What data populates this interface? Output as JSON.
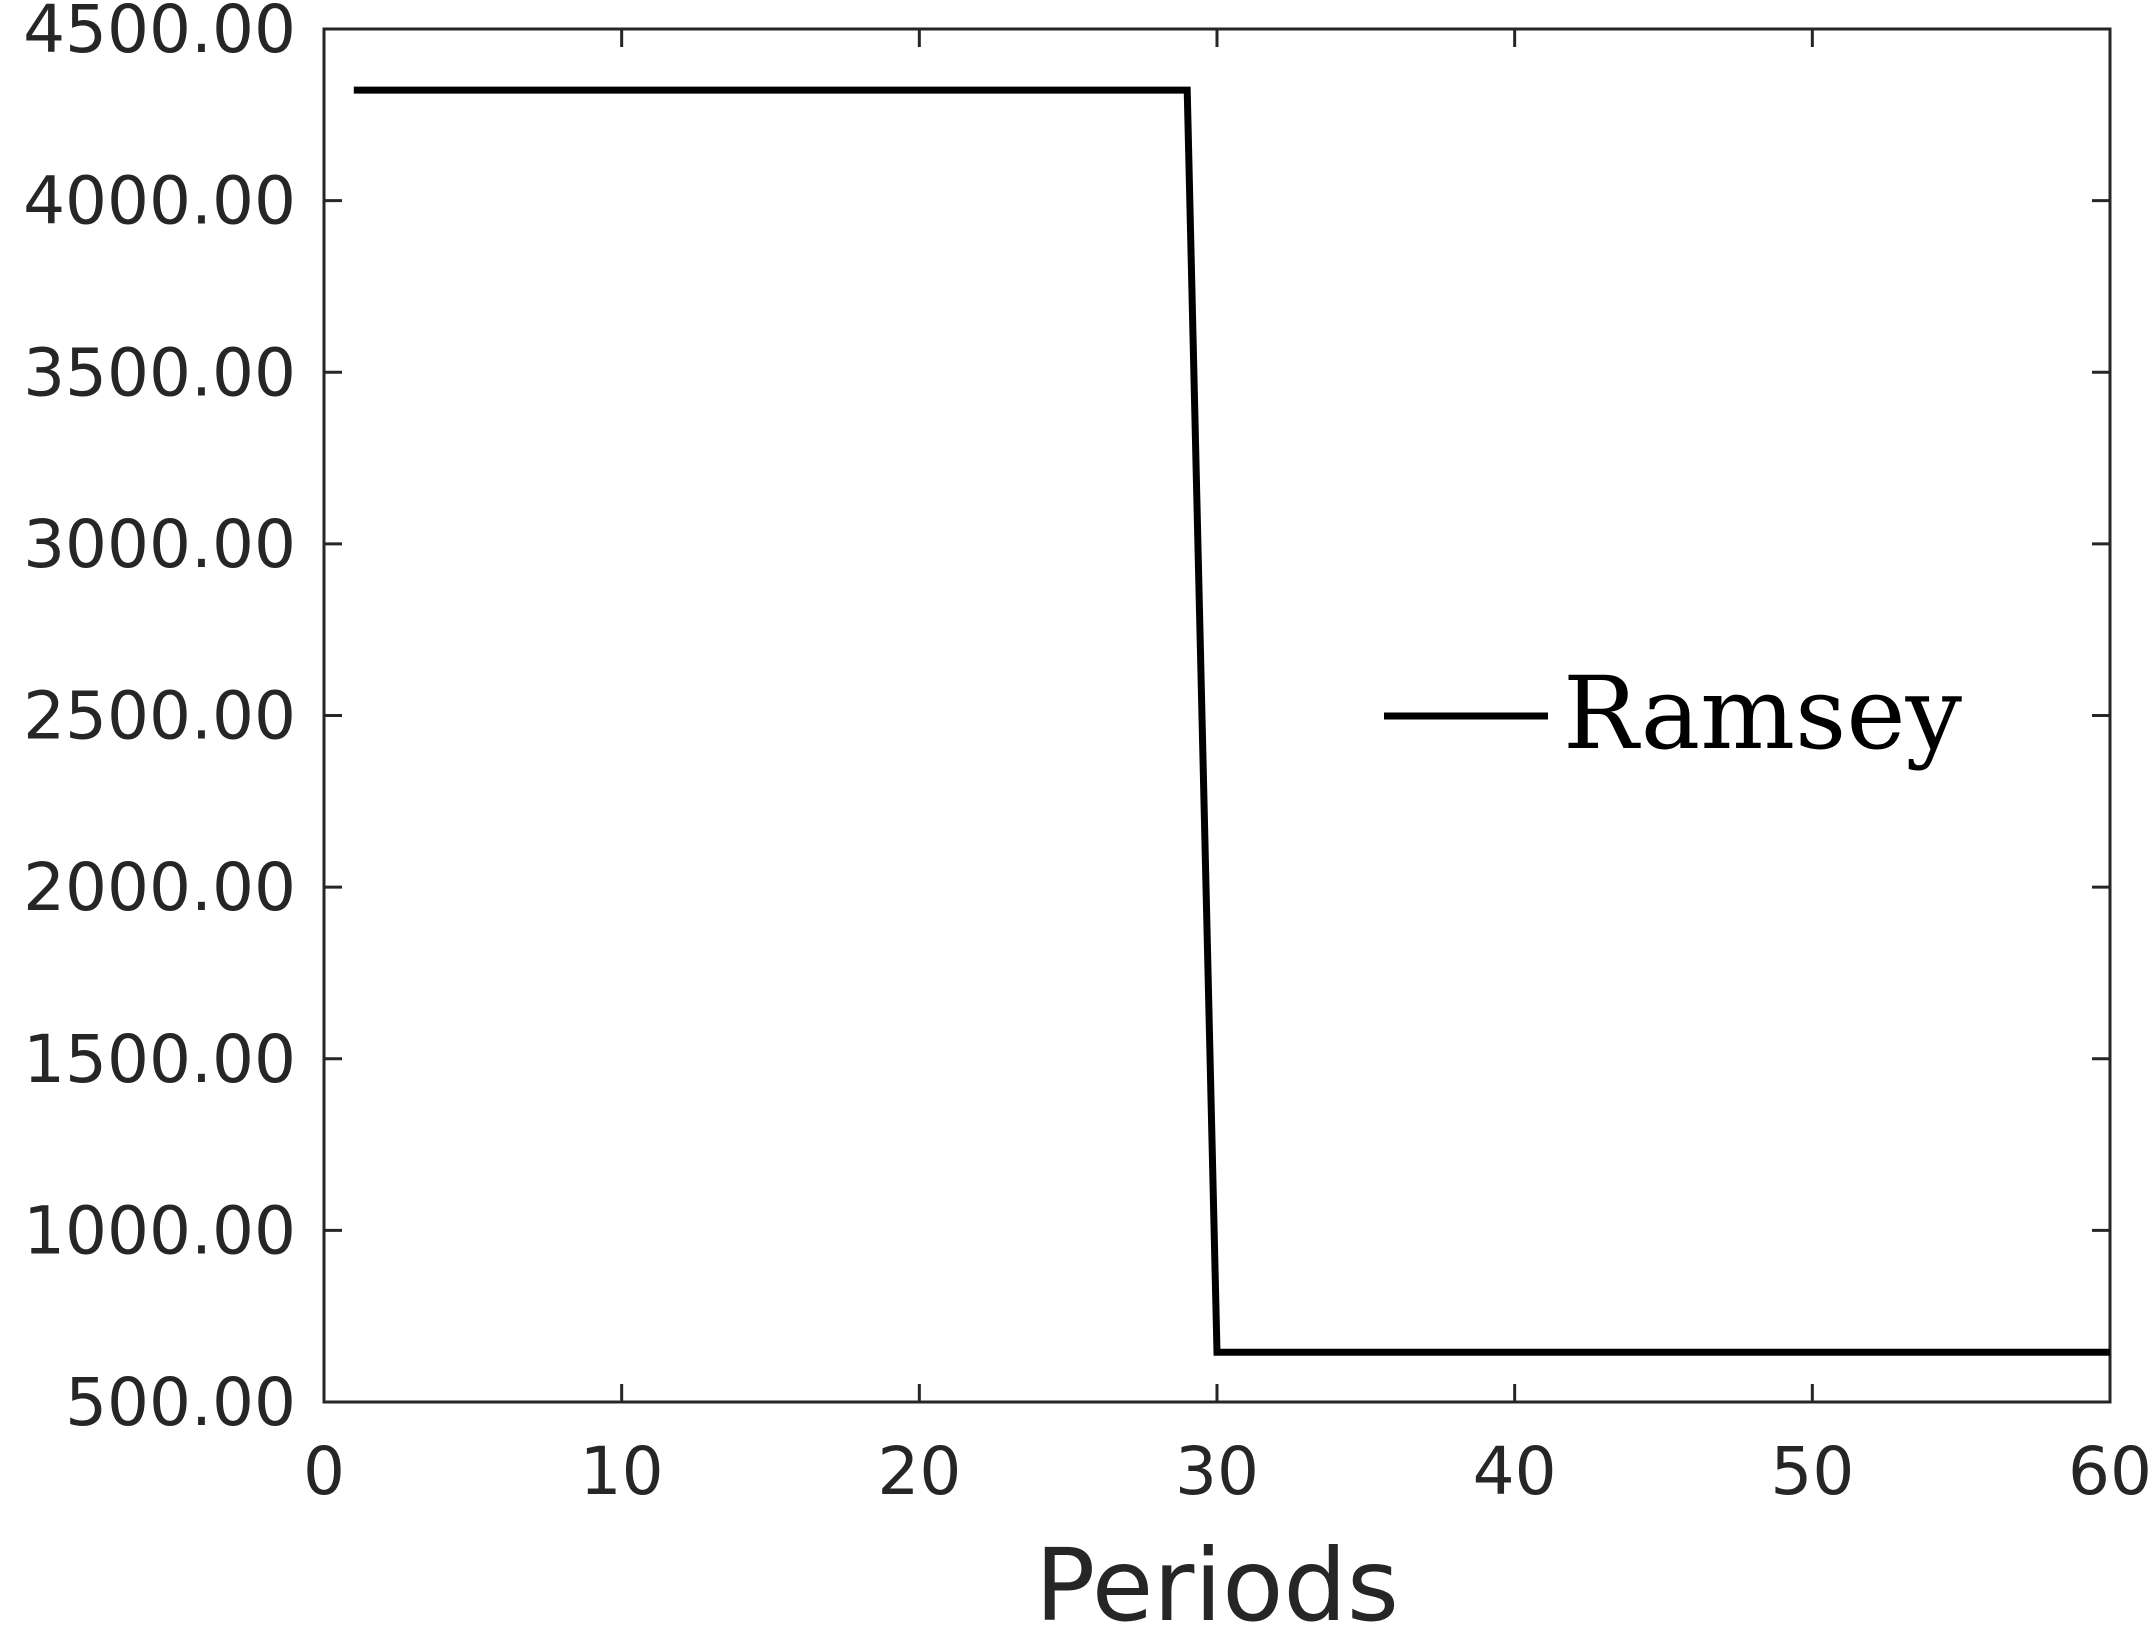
{
  "chart_data": {
    "type": "line",
    "title": "",
    "xlabel": "Periods",
    "ylabel": "",
    "xlim": [
      0,
      60
    ],
    "ylim": [
      500,
      4500
    ],
    "x_ticks": [
      0,
      10,
      20,
      30,
      40,
      50,
      60
    ],
    "x_tick_labels": [
      "0",
      "10",
      "20",
      "30",
      "40",
      "50",
      "60"
    ],
    "y_ticks": [
      500,
      1000,
      1500,
      2000,
      2500,
      3000,
      3500,
      4000,
      4500
    ],
    "y_tick_labels": [
      "500.00",
      "1000.00",
      "1500.00",
      "2000.00",
      "2500.00",
      "3000.00",
      "3500.00",
      "4000.00",
      "4500.00"
    ],
    "grid": false,
    "legend_position": "center-right",
    "series": [
      {
        "name": "Ramsey",
        "color": "#000000",
        "x": [
          1,
          29,
          30,
          60
        ],
        "y": [
          4322,
          4322,
          645,
          645
        ]
      }
    ]
  }
}
